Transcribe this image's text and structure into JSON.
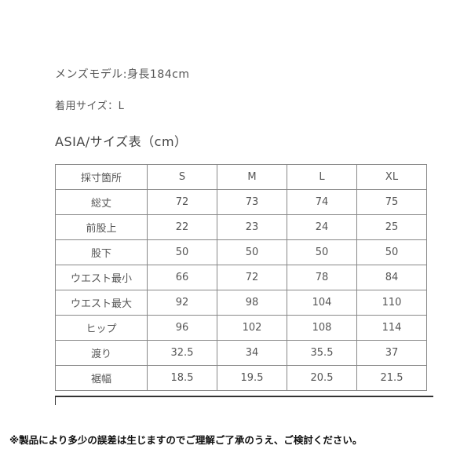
{
  "model_info": "メンズモデル:身長184cm",
  "worn_size": "着用サイズ：L",
  "table_title": "ASIA/サイズ表（cm）",
  "table": {
    "headers": [
      "採寸箇所",
      "S",
      "M",
      "L",
      "XL"
    ],
    "rows": [
      [
        "総丈",
        "72",
        "73",
        "74",
        "75"
      ],
      [
        "前股上",
        "22",
        "23",
        "24",
        "25"
      ],
      [
        "股下",
        "50",
        "50",
        "50",
        "50"
      ],
      [
        "ウエスト最小",
        "66",
        "72",
        "78",
        "84"
      ],
      [
        "ウエスト最大",
        "92",
        "98",
        "104",
        "110"
      ],
      [
        "ヒップ",
        "96",
        "102",
        "108",
        "114"
      ],
      [
        "渡り",
        "32.5",
        "34",
        "35.5",
        "37"
      ],
      [
        "裾幅",
        "18.5",
        "19.5",
        "20.5",
        "21.5"
      ]
    ]
  },
  "note": "※製品により多少の誤差は生じますのでご理解ご了承のうえ、ご検討ください。"
}
